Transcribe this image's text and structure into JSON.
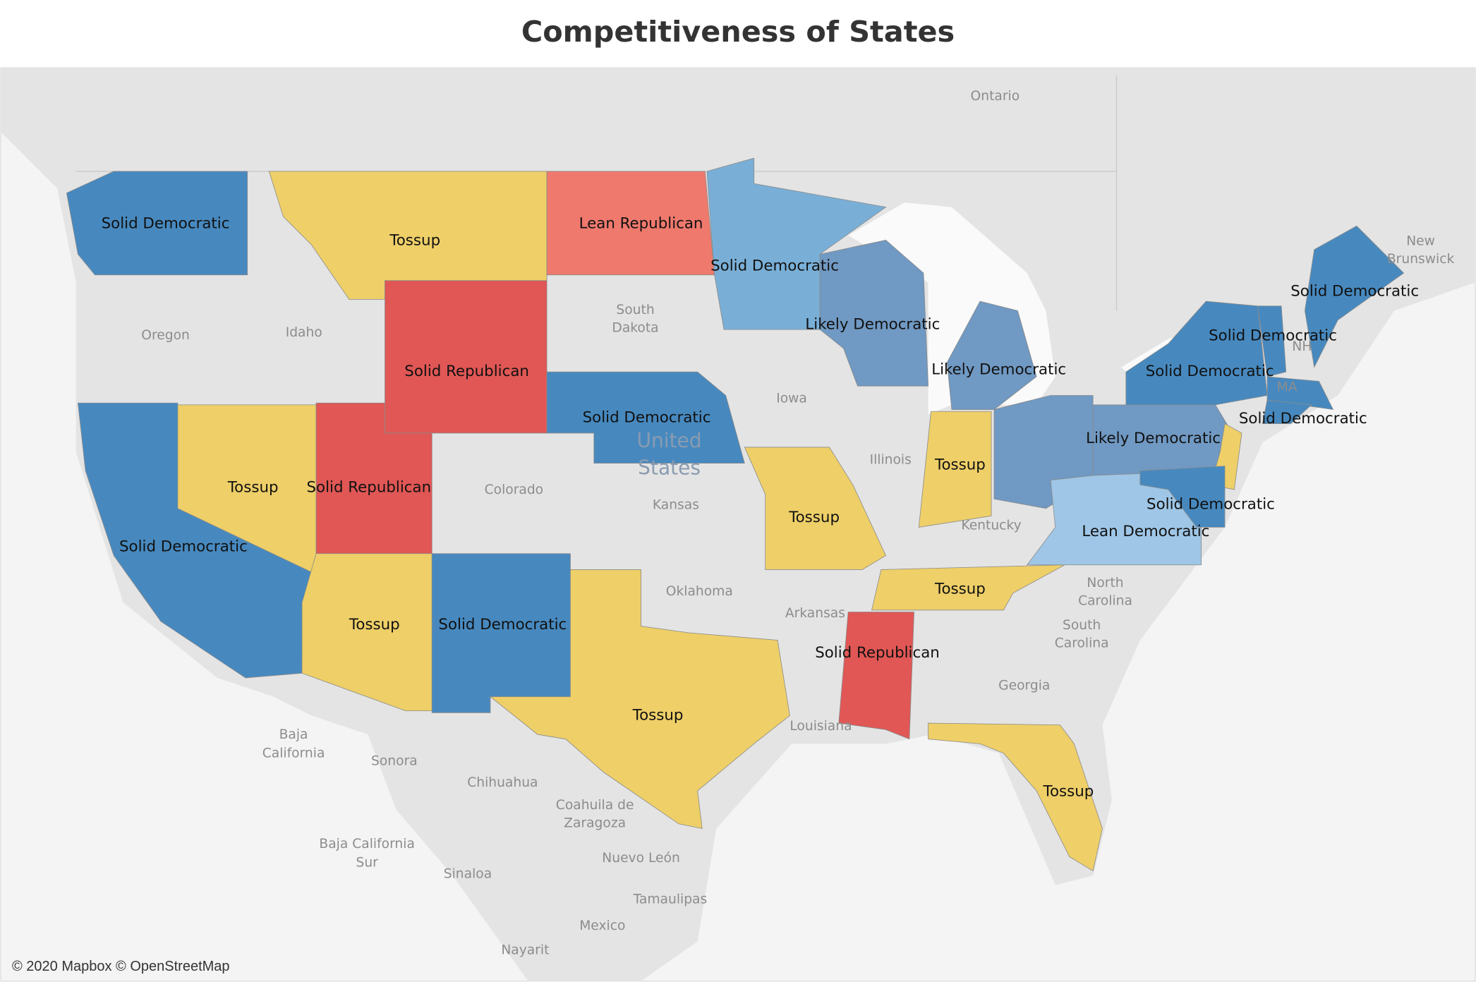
{
  "title": "Competitiveness of States",
  "regions": [
    {
      "label": "Solid Democratic"
    },
    {
      "label": "Tossup"
    },
    {
      "label": "Lean Republican"
    },
    {
      "label": "Solid Democratic"
    },
    {
      "label": "Solid Republican"
    },
    {
      "label": "Likely Democratic"
    },
    {
      "label": "Likely Democratic"
    },
    {
      "label": "Solid Democratic"
    },
    {
      "label": "Solid Democratic"
    },
    {
      "label": "Tossup"
    },
    {
      "label": "Solid Republican"
    },
    {
      "label": "Solid Democratic"
    },
    {
      "label": "Tossup"
    },
    {
      "label": "Likely Democratic"
    },
    {
      "label": "Tossup"
    },
    {
      "label": "Solid Democratic"
    },
    {
      "label": "Lean Democratic"
    },
    {
      "label": "Solid Democratic"
    },
    {
      "label": "Tossup"
    },
    {
      "label": "Tossup"
    },
    {
      "label": "Solid Democratic"
    },
    {
      "label": "Solid Republican"
    },
    {
      "label": "Tossup"
    },
    {
      "label": "Tossup"
    },
    {
      "label": "Solid Democratic"
    },
    {
      "label": "Solid Democratic"
    }
  ],
  "place_names": [
    [
      "Ontario"
    ],
    [
      "Oregon"
    ],
    [
      "Idaho"
    ],
    [
      "South",
      "Dakota"
    ],
    [
      "Iowa"
    ],
    [
      "Illinois"
    ],
    [
      "Colorado"
    ],
    [
      "Kansas"
    ],
    [
      "Kentucky"
    ],
    [
      "Oklahoma"
    ],
    [
      "Arkansas"
    ],
    [
      "North",
      "Carolina"
    ],
    [
      "South",
      "Carolina"
    ],
    [
      "Georgia"
    ],
    [
      "Louisiana"
    ],
    [
      "Baja",
      "California"
    ],
    [
      "Sonora"
    ],
    [
      "Chihuahua"
    ],
    [
      "Coahuila de",
      "Zaragoza"
    ],
    [
      "Baja California",
      "Sur"
    ],
    [
      "Sinaloa"
    ],
    [
      "Nuevo León"
    ],
    [
      "Tamaulipas"
    ],
    [
      "Mexico"
    ],
    [
      "Nayarit"
    ],
    [
      "New",
      "Brunswick"
    ],
    [
      "United",
      "States"
    ],
    [
      "NH"
    ],
    [
      "MA"
    ]
  ],
  "attribution": "© 2020 Mapbox © OpenStreetMap"
}
